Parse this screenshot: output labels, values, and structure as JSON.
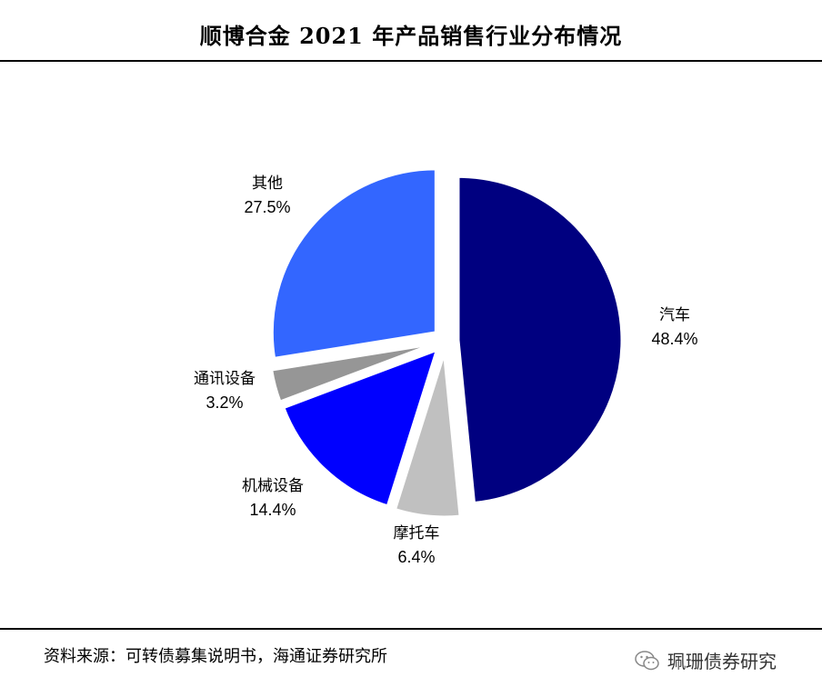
{
  "title": "顺博合金 2021 年产品销售行业分布情况",
  "source": "资料来源：可转债募集说明书，海通证券研究所",
  "watermark": {
    "text": "珮珊债券研究",
    "icon": "wechat-icon"
  },
  "chart_data": {
    "type": "pie",
    "title": "顺博合金 2021 年产品销售行业分布情况",
    "slices": [
      {
        "label": "汽车",
        "value": 48.4,
        "value_label": "48.4%",
        "color": "#000080"
      },
      {
        "label": "摩托车",
        "value": 6.4,
        "value_label": "6.4%",
        "color": "#c0c0c0"
      },
      {
        "label": "机械设备",
        "value": 14.4,
        "value_label": "14.4%",
        "color": "#0000ff"
      },
      {
        "label": "通讯设备",
        "value": 3.2,
        "value_label": "3.2%",
        "color": "#969696"
      },
      {
        "label": "其他",
        "value": 27.5,
        "value_label": "27.5%",
        "color": "#3366ff"
      }
    ],
    "start": "12 o'clock",
    "direction": "clockwise",
    "exploded": true
  }
}
